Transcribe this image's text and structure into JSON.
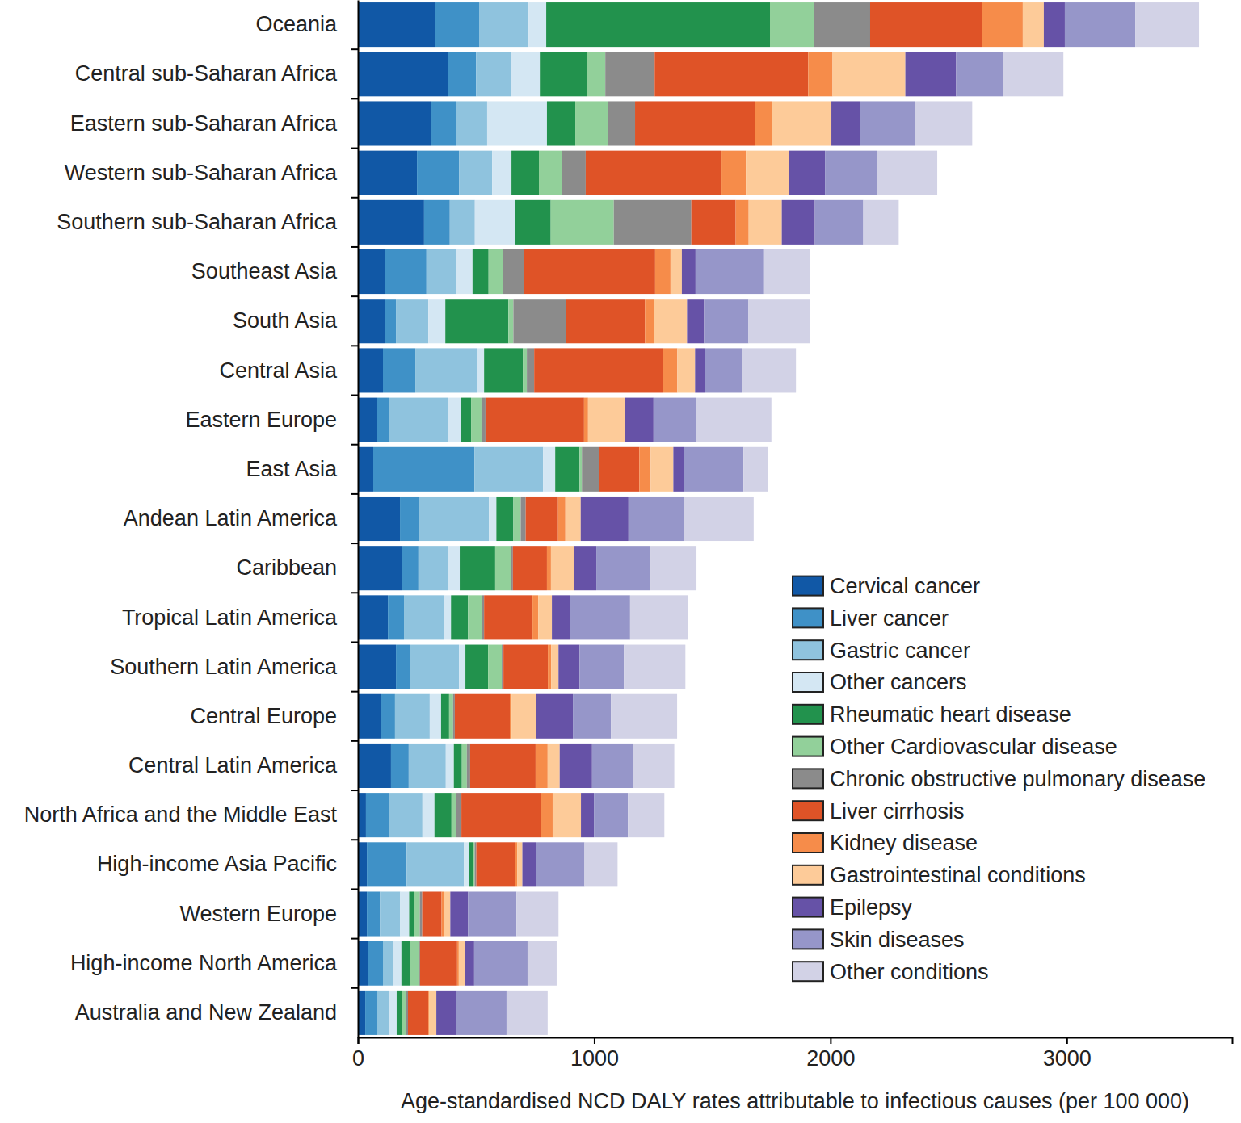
{
  "chart_data": {
    "type": "bar",
    "orientation": "horizontal",
    "stacked": true,
    "legend": "lower right",
    "x_label": "Age-standardised NCD DALY rates attributable to infectious causes (per 100 000)",
    "xlim": [
      0,
      3700
    ],
    "xticks": [
      0,
      1000,
      2000,
      3000
    ],
    "categories": [
      "Oceania",
      "Central sub-Saharan Africa",
      "Eastern sub-Saharan Africa",
      "Western sub-Saharan Africa",
      "Southern sub-Saharan Africa",
      "Southeast Asia",
      "South Asia",
      "Central Asia",
      "Eastern Europe",
      "East Asia",
      "Andean Latin America",
      "Caribbean",
      "Tropical Latin America",
      "Southern Latin America",
      "Central Europe",
      "Central Latin America",
      "North Africa and the Middle East",
      "High-income Asia Pacific",
      "Western Europe",
      "High-income North America",
      "Australia and New Zealand"
    ],
    "series": [
      {
        "name": "Cervical cancer",
        "color": "#1158a6",
        "values": [
          325,
          380,
          308,
          250,
          280,
          116,
          113,
          106,
          82,
          65,
          178,
          188,
          127,
          161,
          99,
          140,
          34,
          38,
          38,
          44,
          31
        ]
      },
      {
        "name": "Liver cancer",
        "color": "#3f91c7",
        "values": [
          188,
          120,
          109,
          178,
          109,
          174,
          48,
          137,
          48,
          428,
          79,
          68,
          68,
          58,
          58,
          75,
          99,
          168,
          55,
          62,
          48
        ]
      },
      {
        "name": "Gastric cancer",
        "color": "#8fc3de",
        "values": [
          209,
          147,
          130,
          140,
          106,
          127,
          137,
          260,
          250,
          291,
          298,
          127,
          168,
          209,
          147,
          157,
          140,
          243,
          86,
          44,
          51
        ]
      },
      {
        "name": "Other cancers",
        "color": "#d4e7f3",
        "values": [
          75,
          123,
          253,
          82,
          171,
          68,
          72,
          31,
          55,
          51,
          31,
          48,
          31,
          27,
          48,
          34,
          51,
          21,
          38,
          34,
          34
        ]
      },
      {
        "name": "Rheumatic heart disease",
        "color": "#22924d",
        "values": [
          947,
          198,
          120,
          116,
          150,
          68,
          267,
          164,
          44,
          103,
          72,
          150,
          72,
          96,
          34,
          34,
          72,
          17,
          21,
          38,
          24
        ]
      },
      {
        "name": "Other Cardiovascular disease",
        "color": "#92d09a",
        "values": [
          188,
          79,
          137,
          99,
          267,
          62,
          21,
          17,
          44,
          10,
          31,
          68,
          58,
          58,
          17,
          21,
          21,
          7,
          24,
          38,
          17
        ]
      },
      {
        "name": "Chronic obstructive pulmonary disease",
        "color": "#8b8b8b",
        "values": [
          236,
          209,
          116,
          99,
          328,
          89,
          222,
          31,
          17,
          72,
          21,
          7,
          10,
          7,
          7,
          14,
          21,
          7,
          10,
          3,
          7
        ]
      },
      {
        "name": "Liver cirrhosis",
        "color": "#df5327",
        "values": [
          472,
          650,
          506,
          575,
          188,
          554,
          335,
          544,
          417,
          171,
          137,
          144,
          205,
          188,
          233,
          277,
          335,
          164,
          82,
          157,
          86
        ]
      },
      {
        "name": "Kidney disease",
        "color": "#f68c4a",
        "values": [
          174,
          103,
          75,
          103,
          55,
          65,
          38,
          62,
          17,
          48,
          31,
          17,
          24,
          14,
          7,
          51,
          51,
          10,
          10,
          7,
          3
        ]
      },
      {
        "name": "Gastrointestinal conditions",
        "color": "#fdcb99",
        "values": [
          89,
          308,
          250,
          181,
          140,
          48,
          140,
          75,
          157,
          96,
          65,
          96,
          58,
          31,
          103,
          51,
          120,
          21,
          27,
          27,
          31
        ]
      },
      {
        "name": "Epilepsy",
        "color": "#6652a7",
        "values": [
          89,
          215,
          120,
          154,
          140,
          58,
          72,
          41,
          120,
          44,
          202,
          96,
          75,
          89,
          157,
          137,
          55,
          58,
          75,
          38,
          82
        ]
      },
      {
        "name": "Skin diseases",
        "color": "#9696c9",
        "values": [
          298,
          198,
          233,
          219,
          205,
          287,
          188,
          157,
          181,
          253,
          236,
          229,
          256,
          188,
          161,
          174,
          144,
          205,
          205,
          226,
          215
        ]
      },
      {
        "name": "Other conditions",
        "color": "#d2d2e6",
        "values": [
          270,
          256,
          243,
          256,
          150,
          198,
          260,
          229,
          318,
          103,
          294,
          195,
          246,
          260,
          280,
          174,
          154,
          140,
          178,
          123,
          174
        ]
      }
    ]
  }
}
